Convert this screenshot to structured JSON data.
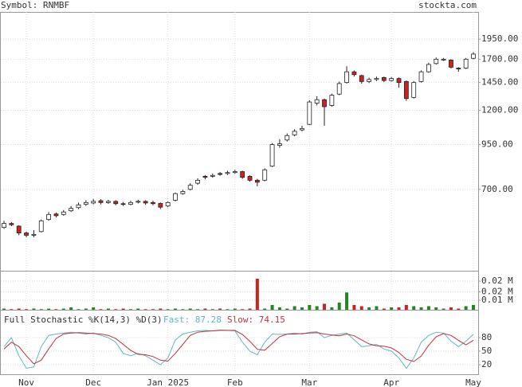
{
  "chart_data": [
    {
      "type": "candlestick",
      "title": "Symbol: RNMBF",
      "source": "stockta.com",
      "log": true,
      "grid": true,
      "up_color": "#ffffff",
      "down_color": "#cc2222",
      "ylim": [
        402,
        2346
      ],
      "yticks": [
        {
          "value": 700,
          "label": "700.00"
        },
        {
          "value": 950,
          "label": "950.00"
        },
        {
          "value": 1200,
          "label": "1200.00"
        },
        {
          "value": 1450,
          "label": "1450.00"
        },
        {
          "value": 1700,
          "label": "1700.00"
        },
        {
          "value": 1950,
          "label": "1950.00"
        }
      ],
      "open": [
        540,
        555,
        545,
        520,
        512,
        525,
        570,
        592,
        590,
        605,
        618,
        632,
        638,
        648,
        640,
        645,
        635,
        632,
        642,
        645,
        640,
        636,
        625,
        650,
        680,
        700,
        730,
        765,
        765,
        780,
        780,
        785,
        790,
        765,
        745,
        745,
        820,
        945,
        980,
        1015,
        1050,
        1090,
        1260,
        1290,
        1240,
        1340,
        1450,
        1560,
        1520,
        1460,
        1480,
        1500,
        1470,
        1490,
        1460,
        1310,
        1460,
        1560,
        1650,
        1700,
        1690,
        1600,
        1600,
        1710
      ],
      "high": [
        565,
        560,
        548,
        525,
        530,
        570,
        600,
        598,
        608,
        625,
        640,
        650,
        655,
        655,
        652,
        650,
        642,
        648,
        652,
        650,
        648,
        640,
        645,
        685,
        698,
        730,
        755,
        772,
        780,
        788,
        795,
        800,
        795,
        770,
        752,
        808,
        960,
        985,
        1025,
        1055,
        1080,
        1285,
        1320,
        1300,
        1345,
        1460,
        1620,
        1575,
        1530,
        1500,
        1510,
        1510,
        1505,
        1500,
        1470,
        1465,
        1575,
        1660,
        1720,
        1715,
        1700,
        1610,
        1715,
        1785
      ],
      "low": [
        535,
        545,
        512,
        505,
        505,
        522,
        565,
        578,
        585,
        600,
        612,
        625,
        632,
        632,
        634,
        628,
        625,
        628,
        636,
        630,
        628,
        612,
        620,
        645,
        675,
        695,
        722,
        750,
        758,
        768,
        772,
        778,
        752,
        738,
        715,
        740,
        815,
        930,
        970,
        1005,
        1040,
        1085,
        1240,
        1080,
        1230,
        1330,
        1440,
        1510,
        1440,
        1445,
        1465,
        1455,
        1460,
        1400,
        1280,
        1300,
        1450,
        1550,
        1640,
        1680,
        1595,
        1560,
        1590,
        1700
      ],
      "close": [
        555,
        550,
        520,
        512,
        515,
        565,
        590,
        585,
        600,
        615,
        630,
        640,
        645,
        640,
        645,
        635,
        632,
        640,
        645,
        638,
        635,
        620,
        640,
        680,
        690,
        720,
        745,
        760,
        770,
        775,
        785,
        790,
        760,
        745,
        735,
        800,
        950,
        955,
        1010,
        1040,
        1060,
        1270,
        1290,
        1230,
        1330,
        1440,
        1560,
        1530,
        1460,
        1480,
        1490,
        1470,
        1490,
        1450,
        1300,
        1450,
        1560,
        1640,
        1700,
        1700,
        1610,
        1590,
        1700,
        1760
      ]
    },
    {
      "type": "bar",
      "up_color": "#228822",
      "down_color": "#cc2222",
      "ylim": [
        0,
        0.032
      ],
      "yticks": [
        {
          "value": 0.008,
          "label": "0.01 M"
        },
        {
          "value": 0.015,
          "label": "0.02 M"
        },
        {
          "value": 0.024,
          "label": "0.02 M"
        }
      ],
      "values": [
        0.001,
        0.0005,
        0.001,
        0.0005,
        0.001,
        0.0005,
        0.001,
        0.0005,
        0.001,
        0.002,
        0.0005,
        0.001,
        0.002,
        0.0005,
        0.001,
        0.0005,
        0.001,
        0.0005,
        0.001,
        0.0005,
        0.0005,
        0.001,
        0.0005,
        0.001,
        0.0005,
        0.001,
        0.0005,
        0.001,
        0.0005,
        0.001,
        0.0005,
        0.001,
        0.0005,
        0.001,
        0.026,
        0.001,
        0.004,
        0.002,
        0.001,
        0.003,
        0.002,
        0.004,
        0.003,
        0.005,
        0.002,
        0.006,
        0.0145,
        0.004,
        0.003,
        0.002,
        0.003,
        0.001,
        0.002,
        0.002,
        0.004,
        0.003,
        0.002,
        0.003,
        0.002,
        0.001,
        0.002,
        0.001,
        0.003,
        0.004
      ]
    },
    {
      "type": "line",
      "title": "Full Stochastic %K(14,3) %D(3)",
      "categories": [
        null,
        null,
        null,
        "Nov",
        null,
        null,
        null,
        null,
        null,
        null,
        null,
        null,
        "Dec",
        null,
        null,
        null,
        null,
        null,
        null,
        null,
        null,
        null,
        "Jan 2025",
        null,
        null,
        null,
        null,
        null,
        null,
        null,
        null,
        "Feb",
        null,
        null,
        null,
        null,
        null,
        null,
        null,
        null,
        null,
        "Mar",
        null,
        null,
        null,
        null,
        null,
        null,
        null,
        null,
        null,
        null,
        "Apr",
        null,
        null,
        null,
        null,
        null,
        null,
        null,
        null,
        null,
        null,
        "May"
      ],
      "ylim": [
        -1.2,
        140
      ],
      "yticks": [
        20,
        50,
        80
      ],
      "series": [
        {
          "name": "Fast: 87.28",
          "color": "#5fb8c0",
          "values": [
            60,
            80,
            40,
            12,
            15,
            60,
            85,
            88,
            90,
            92,
            90,
            88,
            90,
            85,
            80,
            70,
            45,
            40,
            45,
            40,
            30,
            20,
            35,
            75,
            88,
            92,
            95,
            96,
            95,
            97,
            96,
            95,
            70,
            50,
            42,
            70,
            88,
            87,
            88,
            90,
            88,
            92,
            93,
            80,
            85,
            88,
            90,
            75,
            60,
            62,
            65,
            55,
            50,
            35,
            12,
            35,
            70,
            85,
            92,
            90,
            72,
            60,
            72,
            87.28
          ]
        },
        {
          "name": "Slow: 74.15",
          "color": "#c03040",
          "values": [
            55,
            70,
            60,
            40,
            22,
            30,
            55,
            78,
            88,
            90,
            91,
            90,
            89,
            88,
            85,
            78,
            65,
            52,
            43,
            42,
            38,
            30,
            28,
            45,
            65,
            85,
            92,
            94,
            95,
            96,
            96,
            96,
            87,
            72,
            54,
            52,
            67,
            82,
            88,
            88,
            89,
            90,
            91,
            88,
            86,
            84,
            88,
            84,
            75,
            66,
            62,
            61,
            57,
            47,
            32,
            27,
            39,
            63,
            82,
            89,
            85,
            74,
            64,
            74.15
          ]
        }
      ]
    }
  ]
}
